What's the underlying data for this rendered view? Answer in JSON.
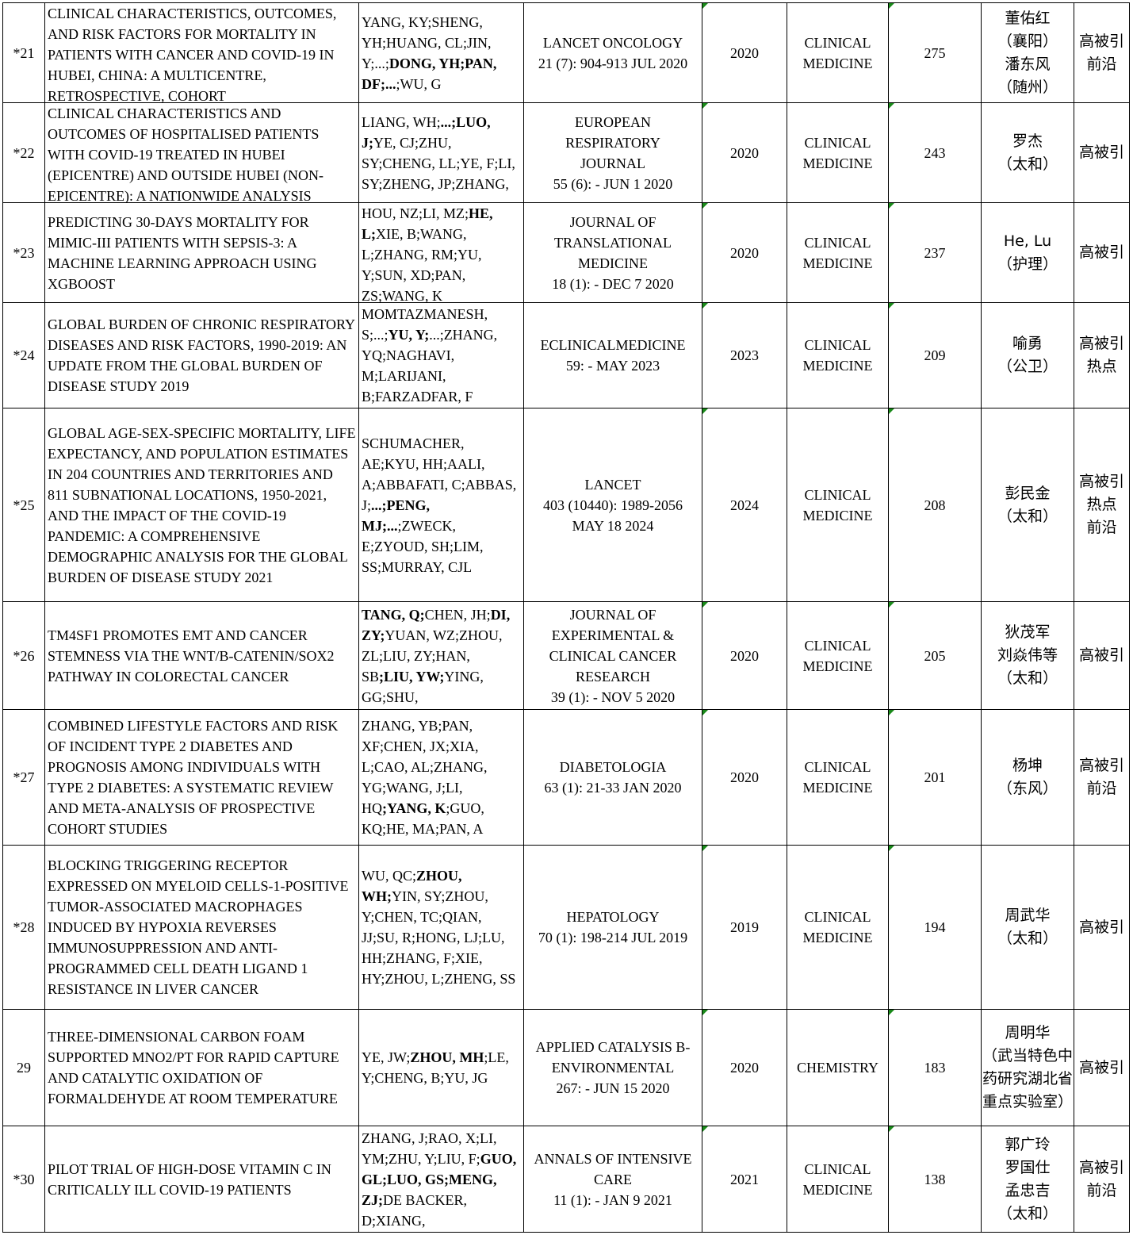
{
  "colors": {
    "grid": "#000000",
    "marker": "#1a8a1a"
  },
  "rows": [
    {
      "no": "*21",
      "title": "CLINICAL CHARACTERISTICS, OUTCOMES, AND RISK FACTORS FOR MORTALITY IN PATIENTS WITH CANCER AND COVID-19 IN HUBEI, CHINA: A MULTICENTRE, RETROSPECTIVE, COHORT",
      "authors": [
        [
          "YANG, KY;SHENG, YH;HUANG, CL;JIN, Y;...;",
          false
        ],
        [
          "DONG, YH;PAN, DF;...",
          true
        ],
        [
          ";WU, G",
          false
        ]
      ],
      "journal": [
        "LANCET ONCOLOGY",
        "21 (7): 904-913 JUL 2020"
      ],
      "year": "2020",
      "field": [
        "CLINICAL",
        "MEDICINE"
      ],
      "citations": "275",
      "author_cn": [
        "董佑红",
        "（襄阳）",
        "潘东风",
        "（随州）"
      ],
      "tags": [
        "高被引",
        "前沿"
      ]
    },
    {
      "no": "*22",
      "title": "CLINICAL CHARACTERISTICS AND OUTCOMES OF HOSPITALISED PATIENTS WITH COVID-19 TREATED IN HUBEI (EPICENTRE) AND OUTSIDE HUBEI (NON-EPICENTRE): A NATIONWIDE ANALYSIS",
      "authors": [
        [
          "LIANG, WH;",
          false
        ],
        [
          "...;LUO, J;",
          true
        ],
        [
          "YE, CJ;ZHU, SY;CHENG, LL;YE, F;LI, SY;ZHENG, JP;ZHANG,",
          false
        ]
      ],
      "journal": [
        "EUROPEAN",
        "RESPIRATORY",
        "JOURNAL",
        "55 (6): - JUN 1 2020"
      ],
      "year": "2020",
      "field": [
        "CLINICAL",
        "MEDICINE"
      ],
      "citations": "243",
      "author_cn": [
        "罗杰",
        "（太和）"
      ],
      "tags": [
        "高被引"
      ]
    },
    {
      "no": "*23",
      "title": "PREDICTING 30-DAYS MORTALITY FOR MIMIC-III PATIENTS WITH SEPSIS-3: A MACHINE LEARNING APPROACH USING XGBOOST",
      "authors": [
        [
          "HOU, NZ;LI, MZ;",
          false
        ],
        [
          "HE, L;",
          true
        ],
        [
          "XIE, B;WANG, L;ZHANG, RM;YU, Y;SUN, XD;PAN, ZS;WANG, K",
          false
        ]
      ],
      "journal": [
        "JOURNAL OF",
        "TRANSLATIONAL",
        "MEDICINE",
        "18 (1): - DEC 7 2020"
      ],
      "year": "2020",
      "field": [
        "CLINICAL",
        "MEDICINE"
      ],
      "citations": "237",
      "author_cn": [
        "He, Lu",
        "（护理）"
      ],
      "tags": [
        "高被引"
      ]
    },
    {
      "no": "*24",
      "title": "GLOBAL BURDEN OF CHRONIC RESPIRATORY DISEASES AND RISK FACTORS, 1990-2019: AN UPDATE FROM THE GLOBAL BURDEN OF DISEASE STUDY 2019",
      "authors": [
        [
          "MOMTAZMANESH, S;...;",
          false
        ],
        [
          "YU, Y;",
          true
        ],
        [
          "...;ZHANG, YQ;NAGHAVI, M;LARIJANI, B;FARZADFAR, F",
          false
        ]
      ],
      "journal": [
        "ECLINICALMEDICINE",
        "59: - MAY 2023"
      ],
      "year": "2023",
      "field": [
        "CLINICAL",
        "MEDICINE"
      ],
      "citations": "209",
      "author_cn": [
        "喻勇",
        "（公卫）"
      ],
      "tags": [
        "高被引",
        "热点"
      ]
    },
    {
      "no": "*25",
      "title": "GLOBAL AGE-SEX-SPECIFIC MORTALITY, LIFE EXPECTANCY, AND POPULATION ESTIMATES IN 204 COUNTRIES AND TERRITORIES AND 811 SUBNATIONAL LOCATIONS, 1950-2021, AND THE IMPACT OF THE COVID-19 PANDEMIC: A COMPREHENSIVE DEMOGRAPHIC ANALYSIS FOR THE GLOBAL BURDEN OF DISEASE STUDY 2021",
      "authors": [
        [
          "SCHUMACHER, AE;KYU, HH;AALI, A;ABBAFATI, C;ABBAS, J;",
          false
        ],
        [
          "...;PENG, MJ;...",
          true
        ],
        [
          ";ZWECK, E;ZYOUD, SH;LIM, SS;MURRAY, CJL",
          false
        ]
      ],
      "journal": [
        "LANCET",
        "403 (10440): 1989-2056",
        "MAY 18 2024"
      ],
      "year": "2024",
      "field": [
        "CLINICAL",
        "MEDICINE"
      ],
      "citations": "208",
      "author_cn": [
        "彭民金",
        "（太和）"
      ],
      "tags": [
        "高被引",
        "热点",
        "前沿"
      ]
    },
    {
      "no": "*26",
      "title": "TM4SF1 PROMOTES EMT AND CANCER STEMNESS VIA THE WNT/B-CATENIN/SOX2 PATHWAY IN COLORECTAL CANCER",
      "authors": [
        [
          "TANG, Q;",
          true
        ],
        [
          "CHEN, JH;",
          false
        ],
        [
          "DI, ZY;",
          true
        ],
        [
          "YUAN, WZ;ZHOU, ZL;LIU, ZY;HAN, SB",
          false
        ],
        [
          ";LIU, YW;",
          true
        ],
        [
          "YING, GG;SHU,",
          false
        ]
      ],
      "journal": [
        "JOURNAL OF",
        "EXPERIMENTAL &",
        "CLINICAL CANCER",
        "RESEARCH",
        "39 (1): - NOV 5 2020"
      ],
      "year": "2020",
      "field": [
        "CLINICAL",
        "MEDICINE"
      ],
      "citations": "205",
      "author_cn": [
        "狄茂军",
        "刘焱伟等",
        "（太和）"
      ],
      "tags": [
        "高被引"
      ]
    },
    {
      "no": "*27",
      "title": "COMBINED LIFESTYLE FACTORS AND RISK OF INCIDENT TYPE 2 DIABETES AND PROGNOSIS AMONG INDIVIDUALS WITH TYPE 2 DIABETES: A SYSTEMATIC REVIEW AND META-ANALYSIS OF PROSPECTIVE COHORT STUDIES",
      "authors": [
        [
          "ZHANG, YB;PAN, XF;CHEN, JX;XIA, L;CAO, AL;ZHANG, YG;WANG, J;LI, HQ",
          false
        ],
        [
          ";YANG, K",
          true
        ],
        [
          ";GUO, KQ;HE, MA;PAN, A",
          false
        ]
      ],
      "journal": [
        "DIABETOLOGIA",
        "63 (1): 21-33 JAN 2020"
      ],
      "year": "2020",
      "field": [
        "CLINICAL",
        "MEDICINE"
      ],
      "citations": "201",
      "author_cn": [
        "杨坤",
        "（东风）"
      ],
      "tags": [
        "高被引",
        "前沿"
      ]
    },
    {
      "no": "*28",
      "title": "BLOCKING TRIGGERING RECEPTOR EXPRESSED ON MYELOID CELLS-1-POSITIVE TUMOR-ASSOCIATED MACROPHAGES INDUCED BY HYPOXIA REVERSES IMMUNOSUPPRESSION AND ANTI-PROGRAMMED CELL DEATH LIGAND 1 RESISTANCE IN LIVER CANCER",
      "authors": [
        [
          "WU, QC;",
          false
        ],
        [
          "ZHOU, WH;",
          true
        ],
        [
          "YIN, SY;ZHOU, Y;CHEN, TC;QIAN, JJ;SU, R;HONG, LJ;LU, HH;ZHANG, F;XIE, HY;ZHOU, L;ZHENG, SS",
          false
        ]
      ],
      "journal": [
        "HEPATOLOGY",
        "70 (1): 198-214 JUL 2019"
      ],
      "year": "2019",
      "field": [
        "CLINICAL",
        "MEDICINE"
      ],
      "citations": "194",
      "author_cn": [
        "周武华",
        "（太和）"
      ],
      "tags": [
        "高被引"
      ]
    },
    {
      "no": "29",
      "title": "THREE-DIMENSIONAL CARBON FOAM SUPPORTED MNO2/PT FOR RAPID CAPTURE AND CATALYTIC OXIDATION OF FORMALDEHYDE AT ROOM TEMPERATURE",
      "authors": [
        [
          "YE, JW;",
          false
        ],
        [
          "ZHOU, MH",
          true
        ],
        [
          ";LE, Y;CHENG, B;YU, JG",
          false
        ]
      ],
      "journal": [
        "APPLIED CATALYSIS B-",
        "ENVIRONMENTAL",
        "267: - JUN 15 2020"
      ],
      "year": "2020",
      "field": [
        "CHEMISTRY"
      ],
      "citations": "183",
      "author_cn": [
        "周明华",
        "（武当特色中药研究湖北省重点实验室）"
      ],
      "tags": [
        "高被引"
      ]
    },
    {
      "no": "*30",
      "title": "PILOT TRIAL OF HIGH-DOSE VITAMIN C IN CRITICALLY ILL COVID-19 PATIENTS",
      "authors": [
        [
          "ZHANG, J;RAO, X;LI, YM;ZHU, Y;LIU, F;",
          false
        ],
        [
          "GUO, GL;LUO, GS;MENG, ZJ;",
          true
        ],
        [
          "DE BACKER, D;XIANG,",
          false
        ]
      ],
      "journal": [
        "ANNALS OF INTENSIVE",
        "CARE",
        "11 (1): - JAN 9 2021"
      ],
      "year": "2021",
      "field": [
        "CLINICAL",
        "MEDICINE"
      ],
      "citations": "138",
      "author_cn": [
        "郭广玲",
        "罗国仕",
        "孟忠吉",
        "（太和）"
      ],
      "tags": [
        "高被引",
        "前沿"
      ]
    }
  ]
}
